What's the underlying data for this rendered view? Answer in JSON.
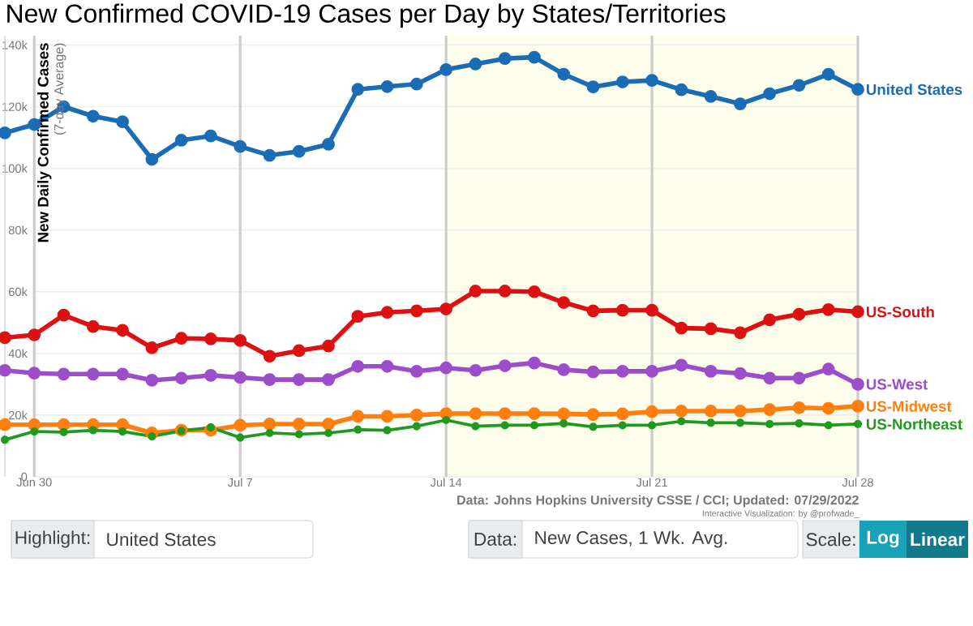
{
  "chart_data": {
    "type": "line",
    "title": "New Confirmed COVID-19 Cases per Day by States/Territories",
    "ylabel": "New Daily Confirmed Cases",
    "x": [
      "2022-06-29",
      "2022-06-30",
      "2022-07-01",
      "2022-07-02",
      "2022-07-03",
      "2022-07-04",
      "2022-07-05",
      "2022-07-06",
      "2022-07-07",
      "2022-07-08",
      "2022-07-09",
      "2022-07-10",
      "2022-07-11",
      "2022-07-12",
      "2022-07-13",
      "2022-07-14",
      "2022-07-15",
      "2022-07-16",
      "2022-07-17",
      "2022-07-18",
      "2022-07-19",
      "2022-07-20",
      "2022-07-21",
      "2022-07-22",
      "2022-07-23",
      "2022-07-24",
      "2022-07-25",
      "2022-07-26",
      "2022-07-27",
      "2022-07-28"
    ],
    "series": [
      {
        "name": "United States",
        "color": "#1a6db5",
        "values": [
          111500,
          114200,
          120000,
          116900,
          115100,
          102900,
          109100,
          110500,
          107100,
          104200,
          105500,
          107800,
          125600,
          126500,
          127300,
          132000,
          133800,
          135600,
          136000,
          130500,
          126400,
          128000,
          128500,
          125500,
          123300,
          120900,
          124200,
          126900,
          130500,
          125600
        ]
      },
      {
        "name": "US-South",
        "color": "#dd1111",
        "values": [
          45100,
          46000,
          52400,
          48700,
          47500,
          41800,
          44900,
          44700,
          44200,
          39100,
          40900,
          42400,
          52000,
          53300,
          53800,
          54400,
          60200,
          60200,
          60000,
          56500,
          53800,
          54000,
          54000,
          48200,
          48000,
          46700,
          50900,
          52700,
          54200,
          53500
        ]
      },
      {
        "name": "US-West",
        "color": "#9b4dca",
        "values": [
          34500,
          33600,
          33300,
          33300,
          33300,
          31300,
          32000,
          32900,
          32200,
          31500,
          31500,
          31500,
          35800,
          35800,
          34200,
          35300,
          34500,
          36000,
          36900,
          34700,
          34000,
          34200,
          34200,
          36200,
          34200,
          33500,
          32000,
          32000,
          34900,
          30000
        ]
      },
      {
        "name": "US-Midwest",
        "color": "#ff7f0e",
        "values": [
          16900,
          16900,
          16900,
          16900,
          16900,
          14200,
          15100,
          15100,
          16700,
          17100,
          17100,
          17100,
          19600,
          19600,
          20000,
          20500,
          20500,
          20500,
          20500,
          20400,
          20200,
          20400,
          21100,
          21300,
          21300,
          21300,
          21800,
          22400,
          22200,
          22900
        ]
      },
      {
        "name": "US-Northeast",
        "color": "#1f9a1f",
        "values": [
          12000,
          14700,
          14500,
          15100,
          14700,
          13100,
          14900,
          16000,
          12700,
          14200,
          13800,
          14200,
          15300,
          15100,
          16400,
          18400,
          16400,
          16700,
          16700,
          17300,
          16200,
          16700,
          16700,
          18000,
          17500,
          17500,
          17100,
          17300,
          16700,
          17100
        ]
      }
    ],
    "xlim": [
      "2022-06-29",
      "2022-07-28"
    ],
    "ylim": [
      0,
      143000
    ],
    "xticks": [
      {
        "value": "2022-06-30",
        "label": "Jun 30"
      },
      {
        "value": "2022-07-07",
        "label": "Jul 7"
      },
      {
        "value": "2022-07-14",
        "label": "Jul 14"
      },
      {
        "value": "2022-07-21",
        "label": "Jul 21"
      },
      {
        "value": "2022-07-28",
        "label": "Jul 28"
      }
    ],
    "yticks": [
      {
        "value": 0,
        "label": "0"
      },
      {
        "value": 20000,
        "label": "20k"
      },
      {
        "value": 40000,
        "label": "40k"
      },
      {
        "value": 60000,
        "label": "60k"
      },
      {
        "value": 80000,
        "label": "80k"
      },
      {
        "value": 100000,
        "label": "100k"
      },
      {
        "value": 120000,
        "label": "120k"
      },
      {
        "value": 140000,
        "label": "140k"
      }
    ],
    "grid": true,
    "marker": "circle",
    "line_style": "solid",
    "bands": [
      {
        "axis": "x",
        "from": "2022-07-14",
        "to": "2022-07-28",
        "color": "#fdfdec"
      }
    ],
    "annotations": [
      "(7-day Average)",
      "Data: Johns Hopkins University CSSE / CCI; Updated: 07/29/2022",
      "Interactive Visualization: by @profwade_",
      "Highlight:",
      "United States",
      "Data:",
      "New Cases, 1 Wk. Avg.",
      "Scale:",
      "Log",
      "Linear"
    ]
  }
}
